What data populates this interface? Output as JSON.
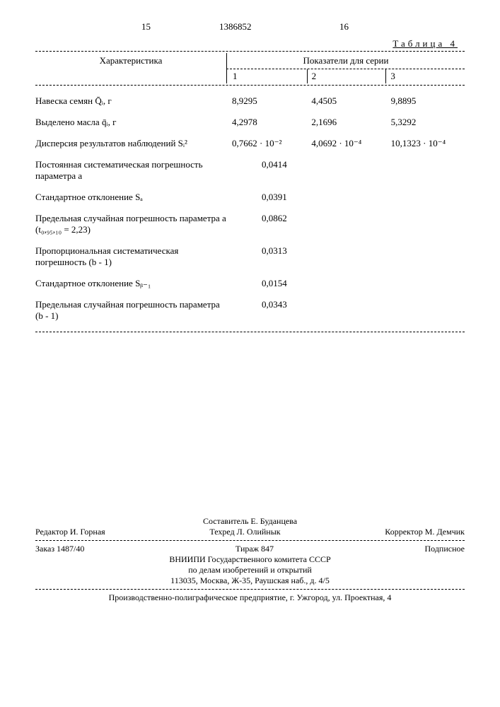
{
  "page_left": "15",
  "page_mid": "1386852",
  "page_right": "16",
  "table_label": "Таблица 4",
  "head_char": "Характеристика",
  "head_series": "Показатели для серии",
  "col1": "1",
  "col2": "2",
  "col3": "3",
  "rows": [
    {
      "label": "Навеска семян Q̄ᵢ, г",
      "v1": "8,9295",
      "v2": "4,4505",
      "v3": "9,8895"
    },
    {
      "label": "Выделено масла q̄ᵢ, г",
      "v1": "4,2978",
      "v2": "2,1696",
      "v3": "5,3292"
    },
    {
      "label": "Дисперсия результатов наблюдений Sᵢ²",
      "v1": "0,7662 · 10⁻²",
      "v2": "4,0692 · 10⁻⁴",
      "v3": "10,1323 · 10⁻⁴"
    }
  ],
  "single_rows": [
    {
      "label": "Постоянная систематическая погрешность параметра  a",
      "val": "0,0414"
    },
    {
      "label": "Стандартное отклонение Sₐ",
      "val": "0,0391"
    },
    {
      "label": "Предельная случайная погрешность параметра a (t₀,₉₅,₁₀ = 2,23)",
      "val": "0,0862"
    },
    {
      "label": "Пропорциональная систематическая погрешность (b - 1)",
      "val": "0,0313"
    },
    {
      "label": "Стандартное отклонение Sᵦ₋₁",
      "val": "0,0154"
    },
    {
      "label": "Предельная случайная погрешность параметра (b - 1)",
      "val": "0,0343"
    }
  ],
  "footer": {
    "compiler": "Составитель Е. Буданцева",
    "editor": "Редактор И. Горная",
    "tehred": "Техред Л. Олийнык",
    "corrector": "Корректор М. Демчик",
    "order": "Заказ 1487/40",
    "tirage": "Тираж 847",
    "subscribe": "Подписное",
    "org1": "ВНИИПИ Государственного комитета СССР",
    "org2": "по делам изобретений и открытий",
    "addr": "113035, Москва, Ж-35, Раушская наб., д. 4/5",
    "print": "Производственно-полиграфическое предприятие, г. Ужгород, ул. Проектная, 4"
  }
}
